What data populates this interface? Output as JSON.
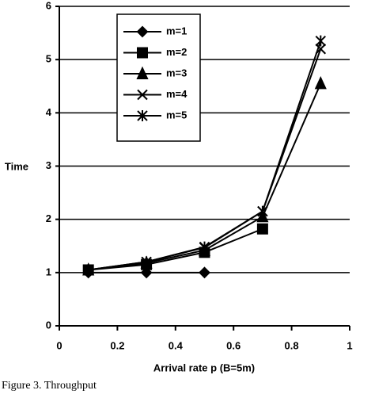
{
  "chart_data": {
    "type": "line",
    "x": [
      0.1,
      0.3,
      0.5,
      0.7,
      0.9
    ],
    "series": [
      {
        "name": "m=1",
        "color": "#000000",
        "marker": "diamond",
        "values": [
          1.0,
          1.0,
          1.0,
          null,
          null
        ]
      },
      {
        "name": "m=2",
        "color": "#000000",
        "marker": "square",
        "values": [
          1.05,
          1.15,
          1.38,
          1.82,
          null
        ]
      },
      {
        "name": "m=3",
        "color": "#000000",
        "marker": "triangle",
        "values": [
          1.05,
          1.18,
          1.42,
          2.05,
          4.55
        ]
      },
      {
        "name": "m=4",
        "color": "#000000",
        "marker": "x",
        "values": [
          1.05,
          1.2,
          1.47,
          2.15,
          5.2
        ]
      },
      {
        "name": "m=5",
        "color": "#000000",
        "marker": "star",
        "values": [
          1.05,
          1.2,
          1.48,
          2.15,
          5.35
        ]
      }
    ],
    "xlim": [
      0,
      1
    ],
    "xticks": [
      0,
      0.2,
      0.4,
      0.6,
      0.8,
      1
    ],
    "ylim": [
      0,
      6
    ],
    "yticks": [
      0,
      1,
      2,
      3,
      4,
      5,
      6
    ],
    "xlabel": "Arrival rate p (B=5m)",
    "ylabel": "Time",
    "grid": true,
    "legend": "upper left",
    "caption": "Figure 3. Throughput"
  }
}
